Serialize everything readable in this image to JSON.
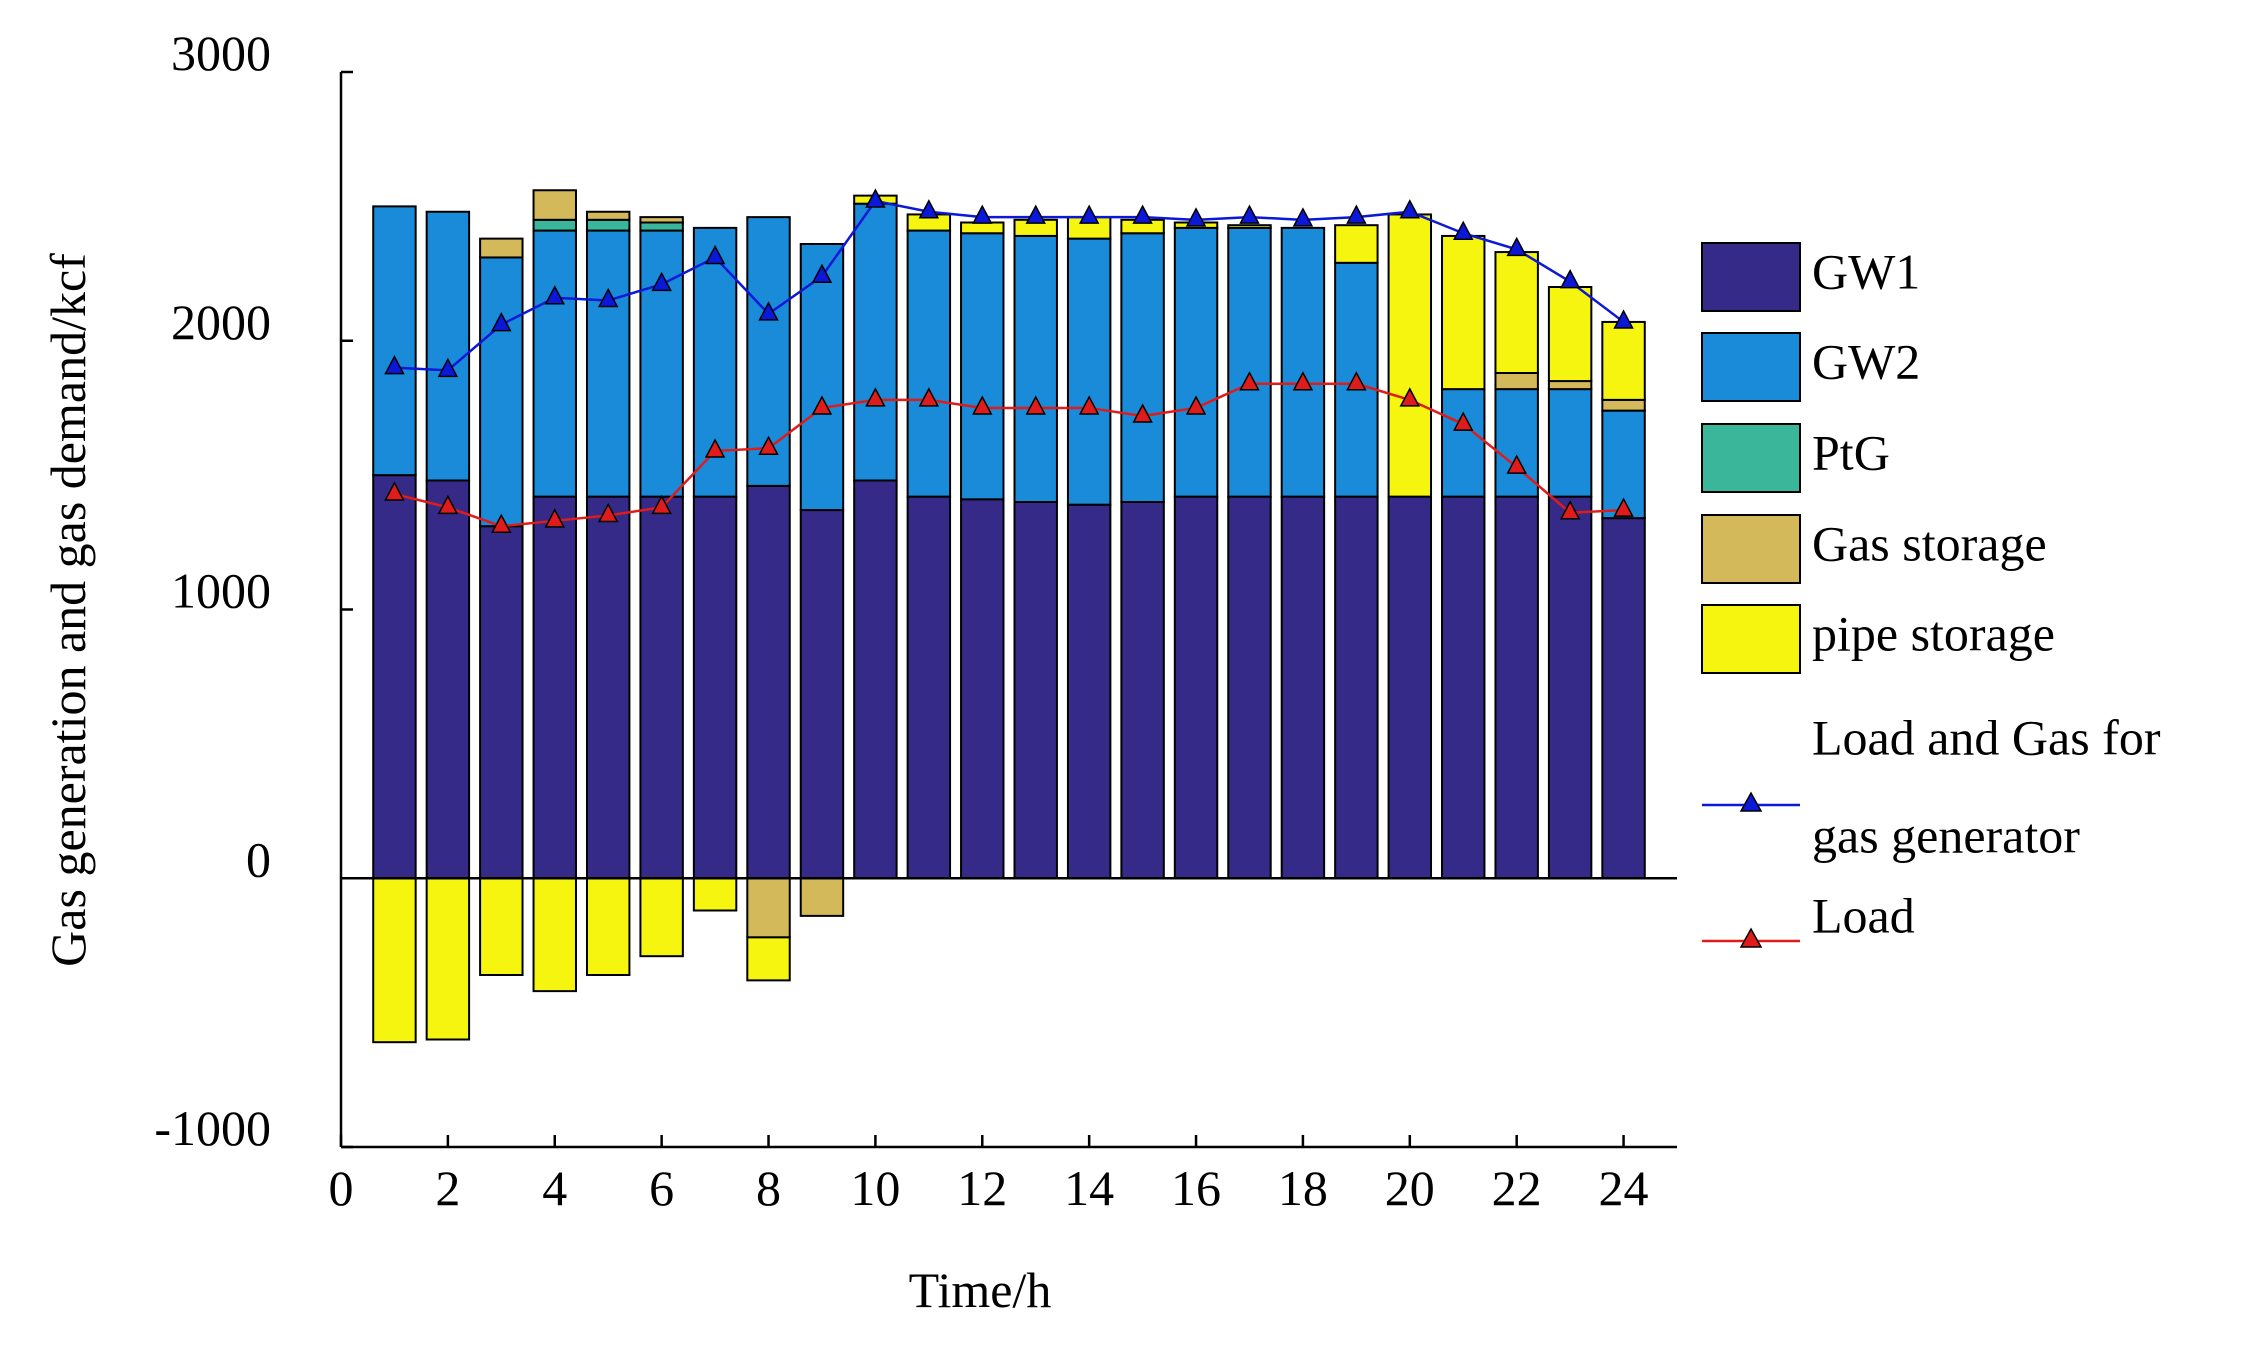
{
  "chart_data": {
    "type": "bar",
    "stacked": true,
    "title": "",
    "xlabel": "Time/h",
    "ylabel": "Gas generation and gas demand/kcf",
    "xlim": [
      0,
      25
    ],
    "ylim": [
      -1000,
      3000
    ],
    "xticks": [
      0,
      2,
      4,
      6,
      8,
      10,
      12,
      14,
      16,
      18,
      20,
      22,
      24
    ],
    "yticks": [
      -1000,
      0,
      1000,
      2000,
      3000
    ],
    "x": [
      1,
      2,
      3,
      4,
      5,
      6,
      7,
      8,
      9,
      10,
      11,
      12,
      13,
      14,
      15,
      16,
      17,
      18,
      19,
      20,
      21,
      22,
      23,
      24
    ],
    "series": [
      {
        "name": "GW1",
        "color": "#352a87",
        "values": [
          1500,
          1480,
          1310,
          1420,
          1420,
          1420,
          1420,
          1460,
          1370,
          1480,
          1420,
          1410,
          1400,
          1390,
          1400,
          1420,
          1420,
          1420,
          1420,
          1420,
          1420,
          1420,
          1420,
          1340
        ]
      },
      {
        "name": "GW2",
        "color": "#1a8bd8",
        "values": [
          1000,
          1000,
          1000,
          990,
          990,
          990,
          1000,
          1000,
          990,
          1030,
          990,
          990,
          990,
          990,
          1000,
          1000,
          1000,
          1000,
          870,
          0,
          400,
          400,
          400,
          400
        ]
      },
      {
        "name": "PtG",
        "color": "#3ab79b",
        "values": [
          0,
          0,
          0,
          40,
          40,
          30,
          0,
          0,
          0,
          0,
          0,
          0,
          0,
          0,
          0,
          0,
          0,
          0,
          0,
          0,
          0,
          0,
          0,
          0
        ]
      },
      {
        "name": "Gas storage",
        "color": "#d4b95a",
        "values": [
          0,
          0,
          70,
          110,
          30,
          20,
          0,
          -220,
          -140,
          0,
          0,
          0,
          0,
          0,
          0,
          0,
          0,
          0,
          0,
          0,
          0,
          60,
          30,
          40
        ]
      },
      {
        "name": "pipe storage",
        "color": "#f5f50f",
        "values": [
          -610,
          -600,
          -360,
          -420,
          -360,
          -290,
          -120,
          -160,
          0,
          30,
          60,
          40,
          60,
          80,
          50,
          20,
          10,
          0,
          140,
          1050,
          570,
          450,
          350,
          290
        ]
      }
    ],
    "lines": [
      {
        "name": "Load and Gas for gas generator",
        "color": "#0b18d8",
        "marker": "triangle",
        "values": [
          1900,
          1890,
          2060,
          2160,
          2150,
          2210,
          2310,
          2100,
          2240,
          2520,
          2480,
          2460,
          2460,
          2460,
          2460,
          2450,
          2460,
          2450,
          2460,
          2480,
          2400,
          2340,
          2220,
          2070
        ]
      },
      {
        "name": "Load",
        "color": "#e01b1b",
        "marker": "triangle",
        "values": [
          1430,
          1380,
          1310,
          1330,
          1350,
          1380,
          1590,
          1600,
          1750,
          1780,
          1780,
          1750,
          1750,
          1750,
          1720,
          1750,
          1840,
          1840,
          1840,
          1780,
          1690,
          1530,
          1360,
          1370
        ]
      }
    ],
    "legend": {
      "position": "right",
      "entries": [
        "GW1",
        "GW2",
        "PtG",
        "Gas storage",
        "pipe storage",
        "Load and Gas for",
        "gas generator",
        "Load"
      ]
    }
  }
}
